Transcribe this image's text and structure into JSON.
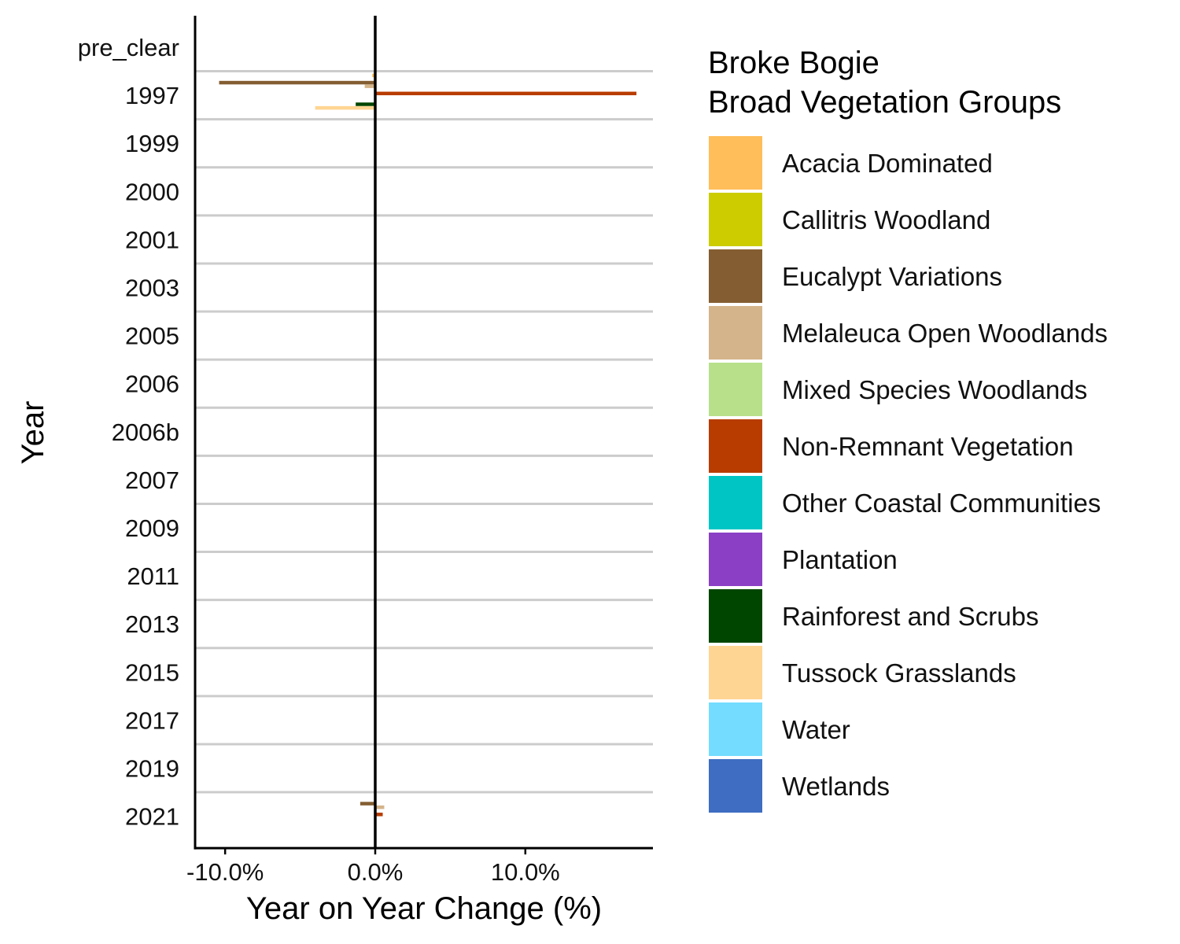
{
  "chart_data": {
    "type": "bar",
    "orientation": "horizontal",
    "xlabel": "Year on Year Change (%)",
    "ylabel": "Year",
    "x_ticks": [
      "-10.0%",
      "0.0%",
      "10.0%"
    ],
    "x_tick_values": [
      -10,
      0,
      10
    ],
    "xlim": [
      -12,
      18.5
    ],
    "categories": [
      "pre_clear",
      "1997",
      "1999",
      "2000",
      "2001",
      "2003",
      "2005",
      "2006",
      "2006b",
      "2007",
      "2009",
      "2011",
      "2013",
      "2015",
      "2017",
      "2019",
      "2021"
    ],
    "legend": {
      "title_lines": [
        "Broke Bogie",
        "Broad Vegetation Groups"
      ],
      "placement": "right"
    },
    "grid": "horizontal lines between categories",
    "series": [
      {
        "name": "Acacia Dominated",
        "color": "#FFBE5A",
        "values": [
          null,
          -0.2,
          null,
          null,
          null,
          null,
          0,
          null,
          null,
          null,
          null,
          null,
          null,
          null,
          null,
          null,
          0
        ]
      },
      {
        "name": "Callitris Woodland",
        "color": "#CCCC00",
        "values": [
          null,
          null,
          null,
          null,
          null,
          null,
          null,
          null,
          null,
          null,
          null,
          null,
          null,
          null,
          null,
          null,
          null
        ]
      },
      {
        "name": "Eucalypt Variations",
        "color": "#845E32",
        "values": [
          null,
          -10.4,
          null,
          null,
          null,
          null,
          0,
          null,
          null,
          null,
          null,
          null,
          null,
          null,
          null,
          null,
          -1.0
        ]
      },
      {
        "name": "Melaleuca Open Woodlands",
        "color": "#D4B48A",
        "values": [
          null,
          -0.7,
          null,
          null,
          null,
          null,
          0,
          null,
          null,
          null,
          null,
          null,
          null,
          null,
          null,
          null,
          0.6
        ]
      },
      {
        "name": "Mixed Species Woodlands",
        "color": "#B8E08A",
        "values": [
          null,
          null,
          null,
          null,
          null,
          null,
          null,
          null,
          null,
          null,
          null,
          null,
          null,
          null,
          null,
          null,
          null
        ]
      },
      {
        "name": "Non-Remnant Vegetation",
        "color": "#B83C00",
        "values": [
          null,
          17.4,
          null,
          null,
          null,
          null,
          0.05,
          null,
          null,
          null,
          null,
          null,
          null,
          null,
          null,
          null,
          0.5
        ]
      },
      {
        "name": "Other Coastal Communities",
        "color": "#00C5C5",
        "values": [
          null,
          null,
          null,
          null,
          null,
          null,
          null,
          null,
          null,
          null,
          null,
          null,
          null,
          null,
          null,
          null,
          null
        ]
      },
      {
        "name": "Plantation",
        "color": "#8B3FC5",
        "values": [
          null,
          null,
          null,
          null,
          null,
          null,
          null,
          null,
          null,
          null,
          null,
          null,
          null,
          null,
          null,
          null,
          null
        ]
      },
      {
        "name": "Rainforest and Scrubs",
        "color": "#004500",
        "values": [
          null,
          -1.3,
          null,
          null,
          null,
          null,
          null,
          null,
          null,
          null,
          null,
          null,
          null,
          null,
          null,
          null,
          null
        ]
      },
      {
        "name": "Tussock Grasslands",
        "color": "#FFD593",
        "values": [
          null,
          -4.0,
          null,
          null,
          null,
          null,
          null,
          null,
          null,
          null,
          null,
          null,
          null,
          null,
          null,
          null,
          null
        ]
      },
      {
        "name": "Water",
        "color": "#73DCFF",
        "values": [
          null,
          null,
          null,
          null,
          null,
          null,
          null,
          null,
          null,
          null,
          null,
          null,
          null,
          null,
          null,
          null,
          null
        ]
      },
      {
        "name": "Wetlands",
        "color": "#3E6DC2",
        "values": [
          null,
          null,
          null,
          null,
          null,
          null,
          null,
          null,
          null,
          null,
          null,
          null,
          null,
          null,
          null,
          null,
          null
        ]
      }
    ]
  }
}
